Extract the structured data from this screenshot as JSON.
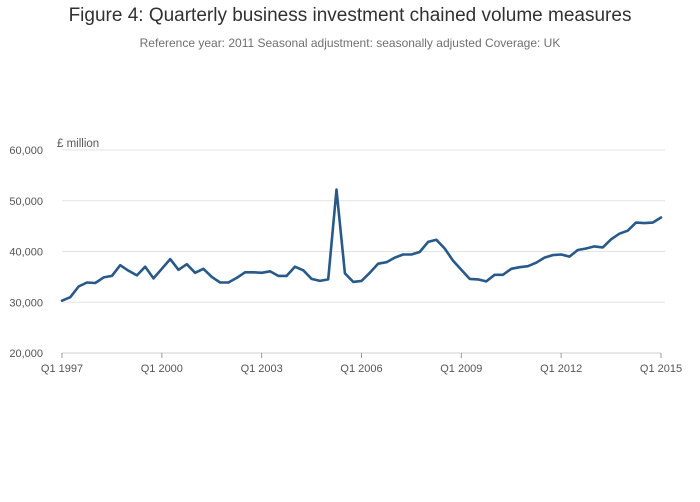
{
  "chart_data": {
    "type": "line",
    "title": "Figure 4: Quarterly business investment chained volume measures",
    "subtitle": "Reference year: 2011 Seasonal adjustment: seasonally adjusted Coverage: UK",
    "ylabel": "£ million",
    "xlabel": "",
    "ylim": [
      20000,
      60000
    ],
    "yticks": [
      20000,
      30000,
      40000,
      50000,
      60000
    ],
    "ytick_labels": [
      "20,000",
      "30,000",
      "40,000",
      "50,000",
      "60,000"
    ],
    "xtick_labels": [
      "Q1 1997",
      "Q1 2000",
      "Q1 2003",
      "Q1 2006",
      "Q1 2009",
      "Q1 2012",
      "Q1 2015"
    ],
    "grid": true,
    "color": "#27598a",
    "series": [
      {
        "x": [
          "Q1 1997",
          "Q2 1997",
          "Q3 1997",
          "Q4 1997",
          "Q1 1998",
          "Q2 1998",
          "Q3 1998",
          "Q4 1998",
          "Q1 1999",
          "Q2 1999",
          "Q3 1999",
          "Q4 1999",
          "Q1 2000",
          "Q2 2000",
          "Q3 2000",
          "Q4 2000",
          "Q1 2001",
          "Q2 2001",
          "Q3 2001",
          "Q4 2001",
          "Q1 2002",
          "Q2 2002",
          "Q3 2002",
          "Q4 2002",
          "Q1 2003",
          "Q2 2003",
          "Q3 2003",
          "Q4 2003",
          "Q1 2004",
          "Q2 2004",
          "Q3 2004",
          "Q4 2004",
          "Q1 2005",
          "Q2 2005",
          "Q3 2005",
          "Q4 2005",
          "Q1 2006",
          "Q2 2006",
          "Q3 2006",
          "Q4 2006",
          "Q1 2007",
          "Q2 2007",
          "Q3 2007",
          "Q4 2007",
          "Q1 2008",
          "Q2 2008",
          "Q3 2008",
          "Q4 2008",
          "Q1 2009",
          "Q2 2009",
          "Q3 2009",
          "Q4 2009",
          "Q1 2010",
          "Q2 2010",
          "Q3 2010",
          "Q4 2010",
          "Q1 2011",
          "Q2 2011",
          "Q3 2011",
          "Q4 2011",
          "Q1 2012",
          "Q2 2012",
          "Q3 2012",
          "Q4 2012",
          "Q1 2013",
          "Q2 2013",
          "Q3 2013",
          "Q4 2013",
          "Q1 2014",
          "Q2 2014",
          "Q3 2014",
          "Q4 2014",
          "Q1 2015"
        ],
        "values": [
          30300,
          31000,
          33100,
          33900,
          33800,
          34900,
          35200,
          37300,
          36200,
          35300,
          37000,
          34700,
          36600,
          38500,
          36400,
          37500,
          35800,
          36600,
          35000,
          33900,
          33900,
          34800,
          35900,
          35900,
          35800,
          36100,
          35200,
          35200,
          37000,
          36300,
          34600,
          34200,
          34500,
          52200,
          35700,
          34000,
          34200,
          35800,
          37600,
          37900,
          38800,
          39400,
          39400,
          39900,
          41900,
          42300,
          40600,
          38200,
          36400,
          34600,
          34500,
          34100,
          35400,
          35400,
          36600,
          36900,
          37100,
          37800,
          38800,
          39300,
          39400,
          39000,
          40300,
          40600,
          41000,
          40800,
          42400,
          43500,
          44100,
          45700,
          45600,
          45700,
          46700
        ]
      }
    ]
  }
}
